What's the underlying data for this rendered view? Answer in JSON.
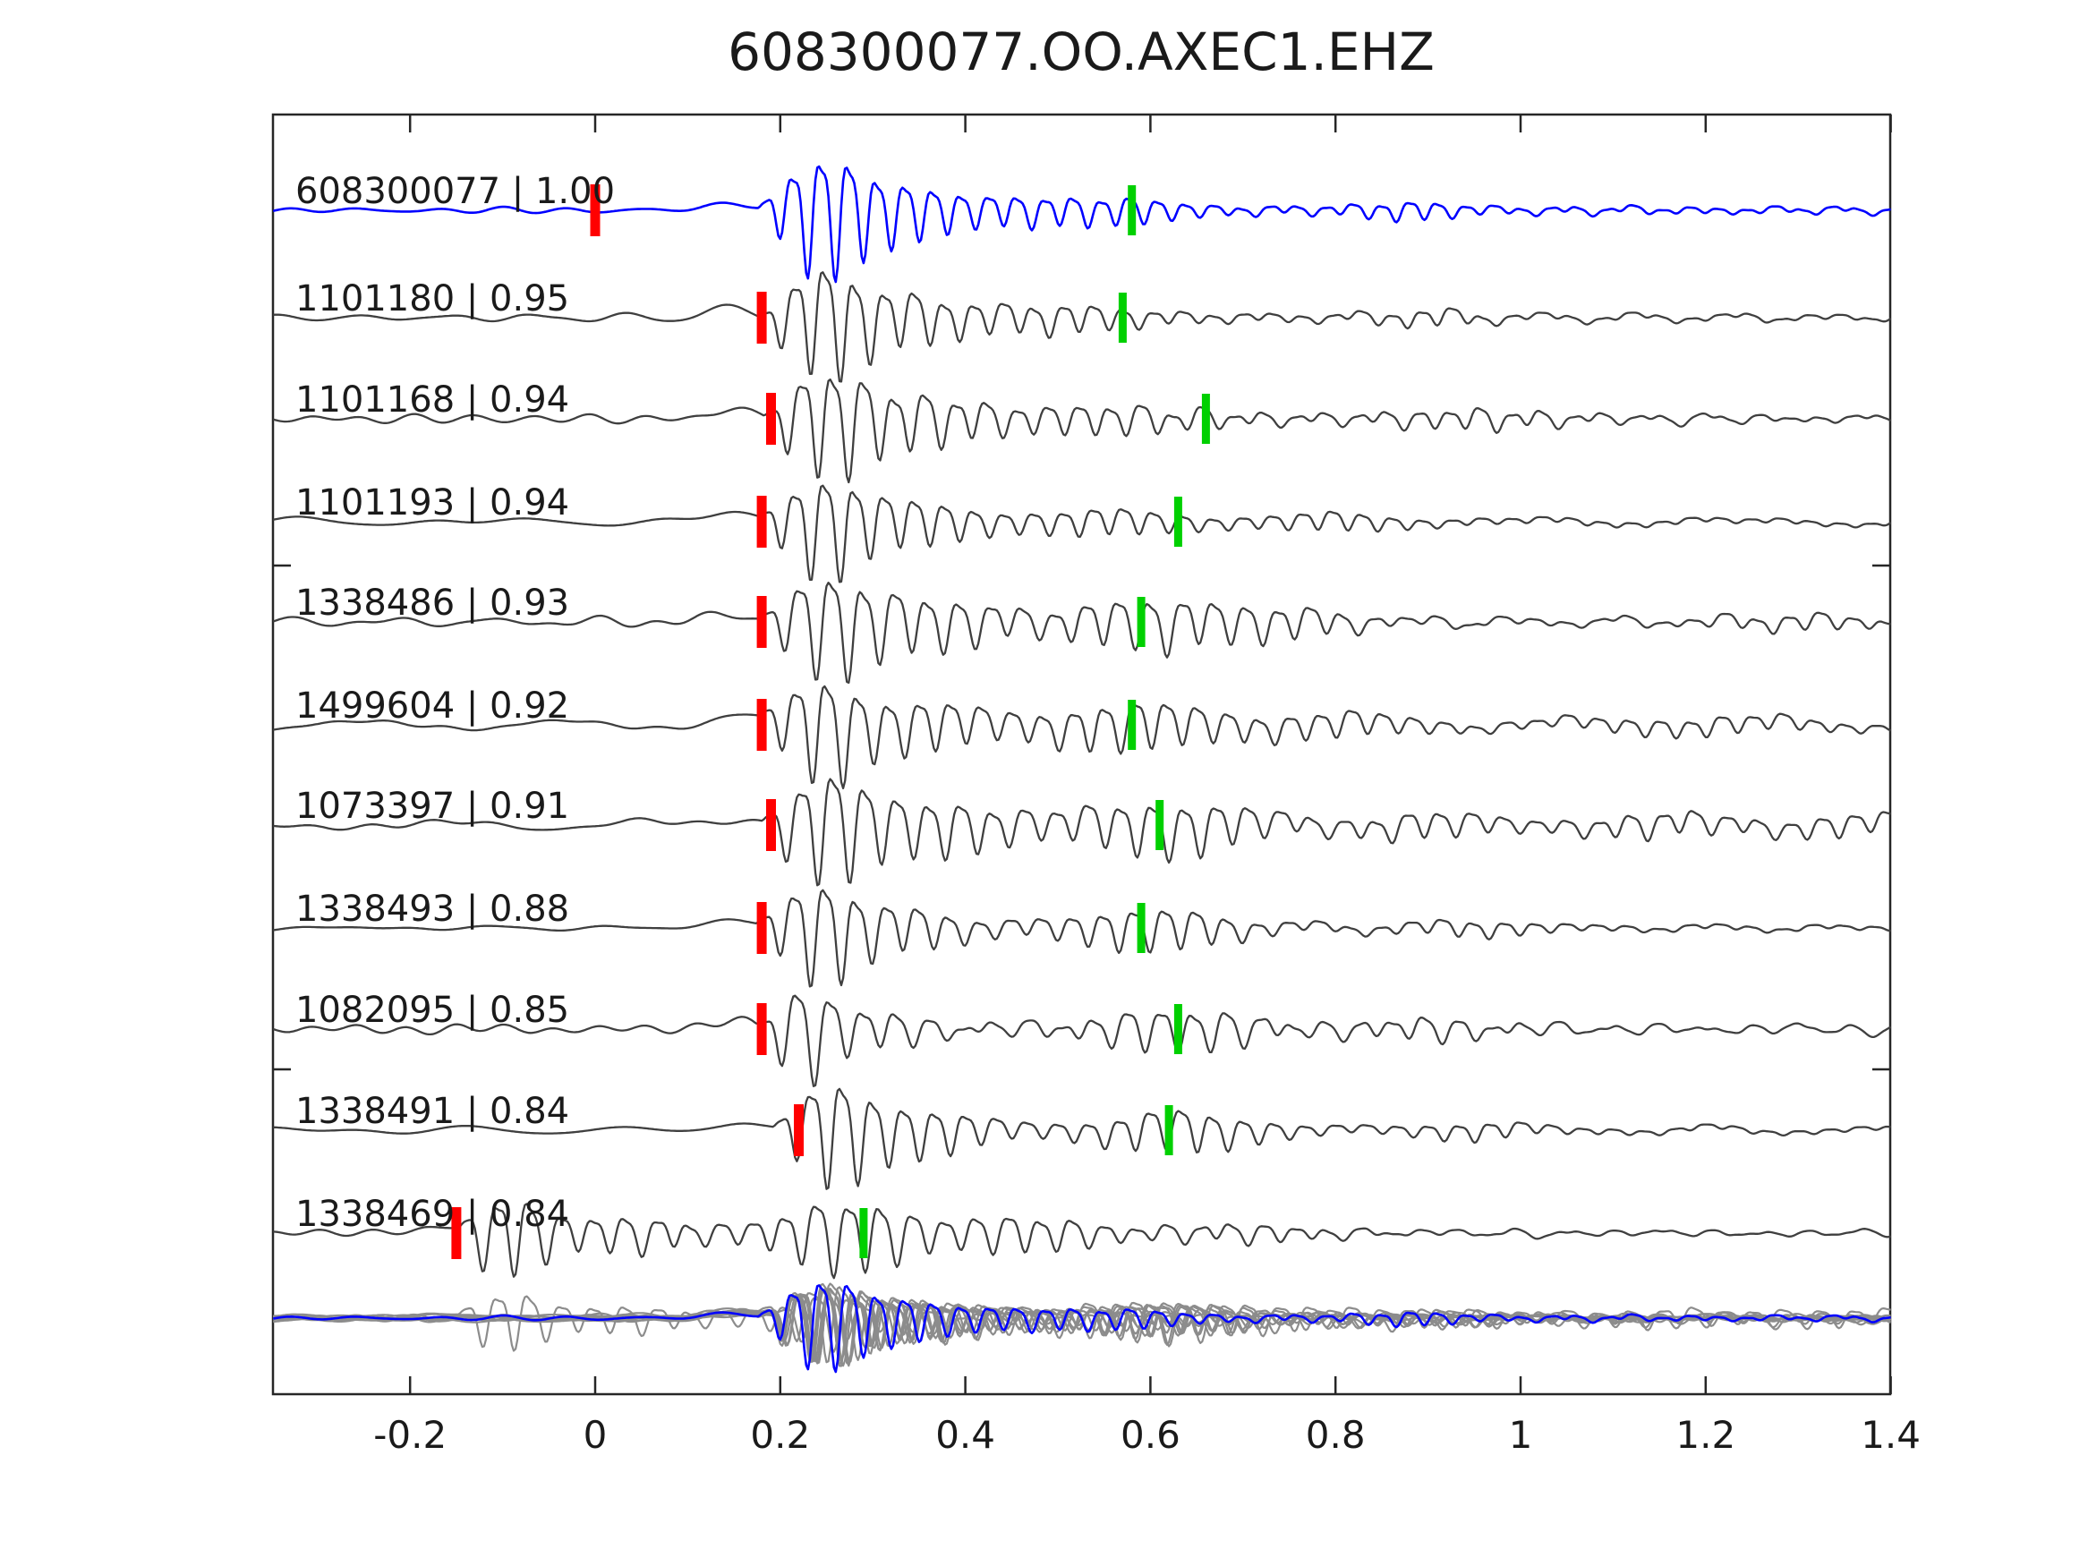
{
  "title": "608300077.OO.AXEC1.EHZ",
  "colors": {
    "background": "#ffffff",
    "template_trace": "#0000ff",
    "match_trace": "#3f3f3f",
    "overlay_gray": "#8c8c8c",
    "pick_red": "#ff0000",
    "pick_green": "#00d000",
    "frame": "#262626",
    "text": "#1a1a1a"
  },
  "chart_data": {
    "type": "line",
    "title": "608300077.OO.AXEC1.EHZ",
    "x_axis": {
      "ticks": [
        -0.2,
        0,
        0.2,
        0.4,
        0.6,
        0.8,
        1,
        1.2,
        1.4
      ],
      "tick_labels": [
        "-0.2",
        "0",
        "0.2",
        "0.4",
        "0.6",
        "0.8",
        "1",
        "1.2",
        "1.4"
      ],
      "range": [
        -0.348,
        1.4
      ],
      "unit": "s"
    },
    "traces": [
      {
        "id": "608300077",
        "correlation": "1.00",
        "label": "608300077 | 1.00",
        "role": "template",
        "red_pick_time": 0.0,
        "green_pick_time": 0.58,
        "waveform": {
          "onset": 0.176,
          "freq": 33,
          "noise": 2.5,
          "seed": 1,
          "bursts": [
            [
              0.243,
              0.05,
              68
            ],
            [
              0.325,
              0.07,
              30
            ],
            [
              0.47,
              0.09,
              13
            ],
            [
              0.585,
              0.06,
              9
            ],
            [
              0.88,
              0.06,
              8
            ]
          ],
          "coda": [
            8,
            1.2
          ],
          "bump": [
            0.15,
            0.035,
            8
          ]
        }
      },
      {
        "id": "1101180",
        "correlation": "0.95",
        "label": "1101180 | 0.95",
        "role": "match",
        "red_pick_time": 0.18,
        "green_pick_time": 0.57,
        "waveform": {
          "onset": 0.176,
          "freq": 31,
          "noise": 4,
          "seed": 2,
          "bursts": [
            [
              0.245,
              0.05,
              60
            ],
            [
              0.33,
              0.08,
              26
            ],
            [
              0.5,
              0.1,
              13
            ],
            [
              0.9,
              0.06,
              7
            ]
          ],
          "coda": [
            8,
            1.0
          ],
          "bump": [
            0.15,
            0.035,
            10
          ]
        }
      },
      {
        "id": "1101168",
        "correlation": "0.94",
        "label": "1101168 | 0.94",
        "role": "match",
        "red_pick_time": 0.19,
        "green_pick_time": 0.66,
        "waveform": {
          "onset": 0.182,
          "freq": 30,
          "noise": 4.5,
          "seed": 3,
          "bursts": [
            [
              0.25,
              0.055,
              60
            ],
            [
              0.35,
              0.08,
              25
            ],
            [
              0.55,
              0.12,
              13
            ],
            [
              0.95,
              0.1,
              9
            ]
          ],
          "coda": [
            9,
            1.0
          ],
          "bump": [
            0.155,
            0.035,
            10
          ]
        }
      },
      {
        "id": "1101193",
        "correlation": "0.94",
        "label": "1101193 | 0.94",
        "role": "match",
        "red_pick_time": 0.18,
        "green_pick_time": 0.63,
        "waveform": {
          "onset": 0.176,
          "freq": 31,
          "noise": 4,
          "seed": 4,
          "bursts": [
            [
              0.245,
              0.05,
              57
            ],
            [
              0.34,
              0.08,
              23
            ],
            [
              0.55,
              0.1,
              12
            ],
            [
              0.8,
              0.08,
              8
            ]
          ],
          "coda": [
            8,
            1.0
          ],
          "bump": [
            0.15,
            0.035,
            10
          ]
        }
      },
      {
        "id": "1338486",
        "correlation": "0.93",
        "label": "1338486 | 0.93",
        "role": "match",
        "red_pick_time": 0.18,
        "green_pick_time": 0.59,
        "waveform": {
          "onset": 0.178,
          "freq": 29,
          "noise": 5,
          "seed": 5,
          "bursts": [
            [
              0.25,
              0.055,
              57
            ],
            [
              0.36,
              0.09,
              28
            ],
            [
              0.6,
              0.1,
              28
            ],
            [
              0.75,
              0.08,
              14
            ],
            [
              1.3,
              0.1,
              8
            ]
          ],
          "coda": [
            9,
            0.9
          ],
          "bump": [
            0.15,
            0.035,
            9
          ]
        }
      },
      {
        "id": "1499604",
        "correlation": "0.92",
        "label": "1499604 | 0.92",
        "role": "match",
        "red_pick_time": 0.18,
        "green_pick_time": 0.58,
        "waveform": {
          "onset": 0.176,
          "freq": 30,
          "noise": 4.5,
          "seed": 6,
          "bursts": [
            [
              0.245,
              0.05,
              58
            ],
            [
              0.35,
              0.08,
              25
            ],
            [
              0.58,
              0.11,
              26
            ],
            [
              0.8,
              0.1,
              12
            ],
            [
              1.2,
              0.15,
              9
            ]
          ],
          "coda": [
            10,
            0.8
          ],
          "bump": [
            0.15,
            0.035,
            9
          ]
        }
      },
      {
        "id": "1073397",
        "correlation": "0.91",
        "label": "1073397 | 0.91",
        "role": "match",
        "red_pick_time": 0.19,
        "green_pick_time": 0.61,
        "waveform": {
          "onset": 0.18,
          "freq": 29,
          "noise": 6,
          "seed": 7,
          "bursts": [
            [
              0.25,
              0.055,
              60
            ],
            [
              0.37,
              0.09,
              27
            ],
            [
              0.62,
              0.11,
              30
            ],
            [
              0.9,
              0.09,
              13
            ],
            [
              1.15,
              0.1,
              13
            ],
            [
              1.35,
              0.08,
              12
            ]
          ],
          "coda": [
            12,
            0.7
          ],
          "bump": [
            0.155,
            0.035,
            10
          ]
        }
      },
      {
        "id": "1338493",
        "correlation": "0.88",
        "label": "1338493 | 0.88",
        "role": "match",
        "red_pick_time": 0.18,
        "green_pick_time": 0.59,
        "waveform": {
          "onset": 0.174,
          "freq": 30,
          "noise": 4,
          "seed": 8,
          "bursts": [
            [
              0.24,
              0.05,
              56
            ],
            [
              0.33,
              0.08,
              21
            ],
            [
              0.6,
              0.1,
              23
            ],
            [
              0.95,
              0.08,
              7
            ]
          ],
          "coda": [
            8,
            1.0
          ],
          "bump": [
            0.148,
            0.035,
            10
          ]
        }
      },
      {
        "id": "1082095",
        "correlation": "0.85",
        "label": "1082095 | 0.85",
        "role": "match",
        "red_pick_time": 0.18,
        "green_pick_time": 0.63,
        "waveform": {
          "onset": 0.174,
          "freq": 28,
          "noise": 4.5,
          "seed": 9,
          "bursts": [
            [
              0.225,
              0.042,
              50
            ],
            [
              0.3,
              0.07,
              17
            ],
            [
              0.63,
              0.1,
              24
            ],
            [
              0.9,
              0.09,
              11
            ]
          ],
          "coda": [
            7,
            1.0
          ],
          "bump": [
            0.148,
            0.035,
            9
          ]
        }
      },
      {
        "id": "1338491",
        "correlation": "0.84",
        "label": "1338491 | 0.84",
        "role": "match",
        "red_pick_time": 0.22,
        "green_pick_time": 0.62,
        "waveform": {
          "onset": 0.192,
          "freq": 30,
          "noise": 4,
          "seed": 10,
          "bursts": [
            [
              0.255,
              0.05,
              58
            ],
            [
              0.35,
              0.08,
              25
            ],
            [
              0.63,
              0.1,
              22
            ],
            [
              0.95,
              0.07,
              8
            ]
          ],
          "coda": [
            8,
            1.0
          ],
          "bump": [
            0.165,
            0.035,
            10
          ]
        }
      },
      {
        "id": "1338469",
        "correlation": "0.84",
        "label": "1338469 | 0.84",
        "role": "match",
        "red_pick_time": -0.15,
        "green_pick_time": 0.29,
        "waveform": {
          "onset": -0.148,
          "freq": 29,
          "noise": 3.5,
          "seed": 11,
          "bursts": [
            [
              -0.1,
              0.05,
              46
            ],
            [
              0.03,
              0.09,
              18
            ],
            [
              0.27,
              0.08,
              44
            ],
            [
              0.46,
              0.1,
              20
            ],
            [
              0.7,
              0.1,
              9
            ]
          ],
          "coda": [
            7,
            0.9
          ],
          "bump": [
            -0.172,
            0.03,
            8
          ]
        }
      }
    ],
    "overlay": {
      "description": "all matched traces overlaid in gray with the blue template on top",
      "scale": 0.75
    }
  }
}
